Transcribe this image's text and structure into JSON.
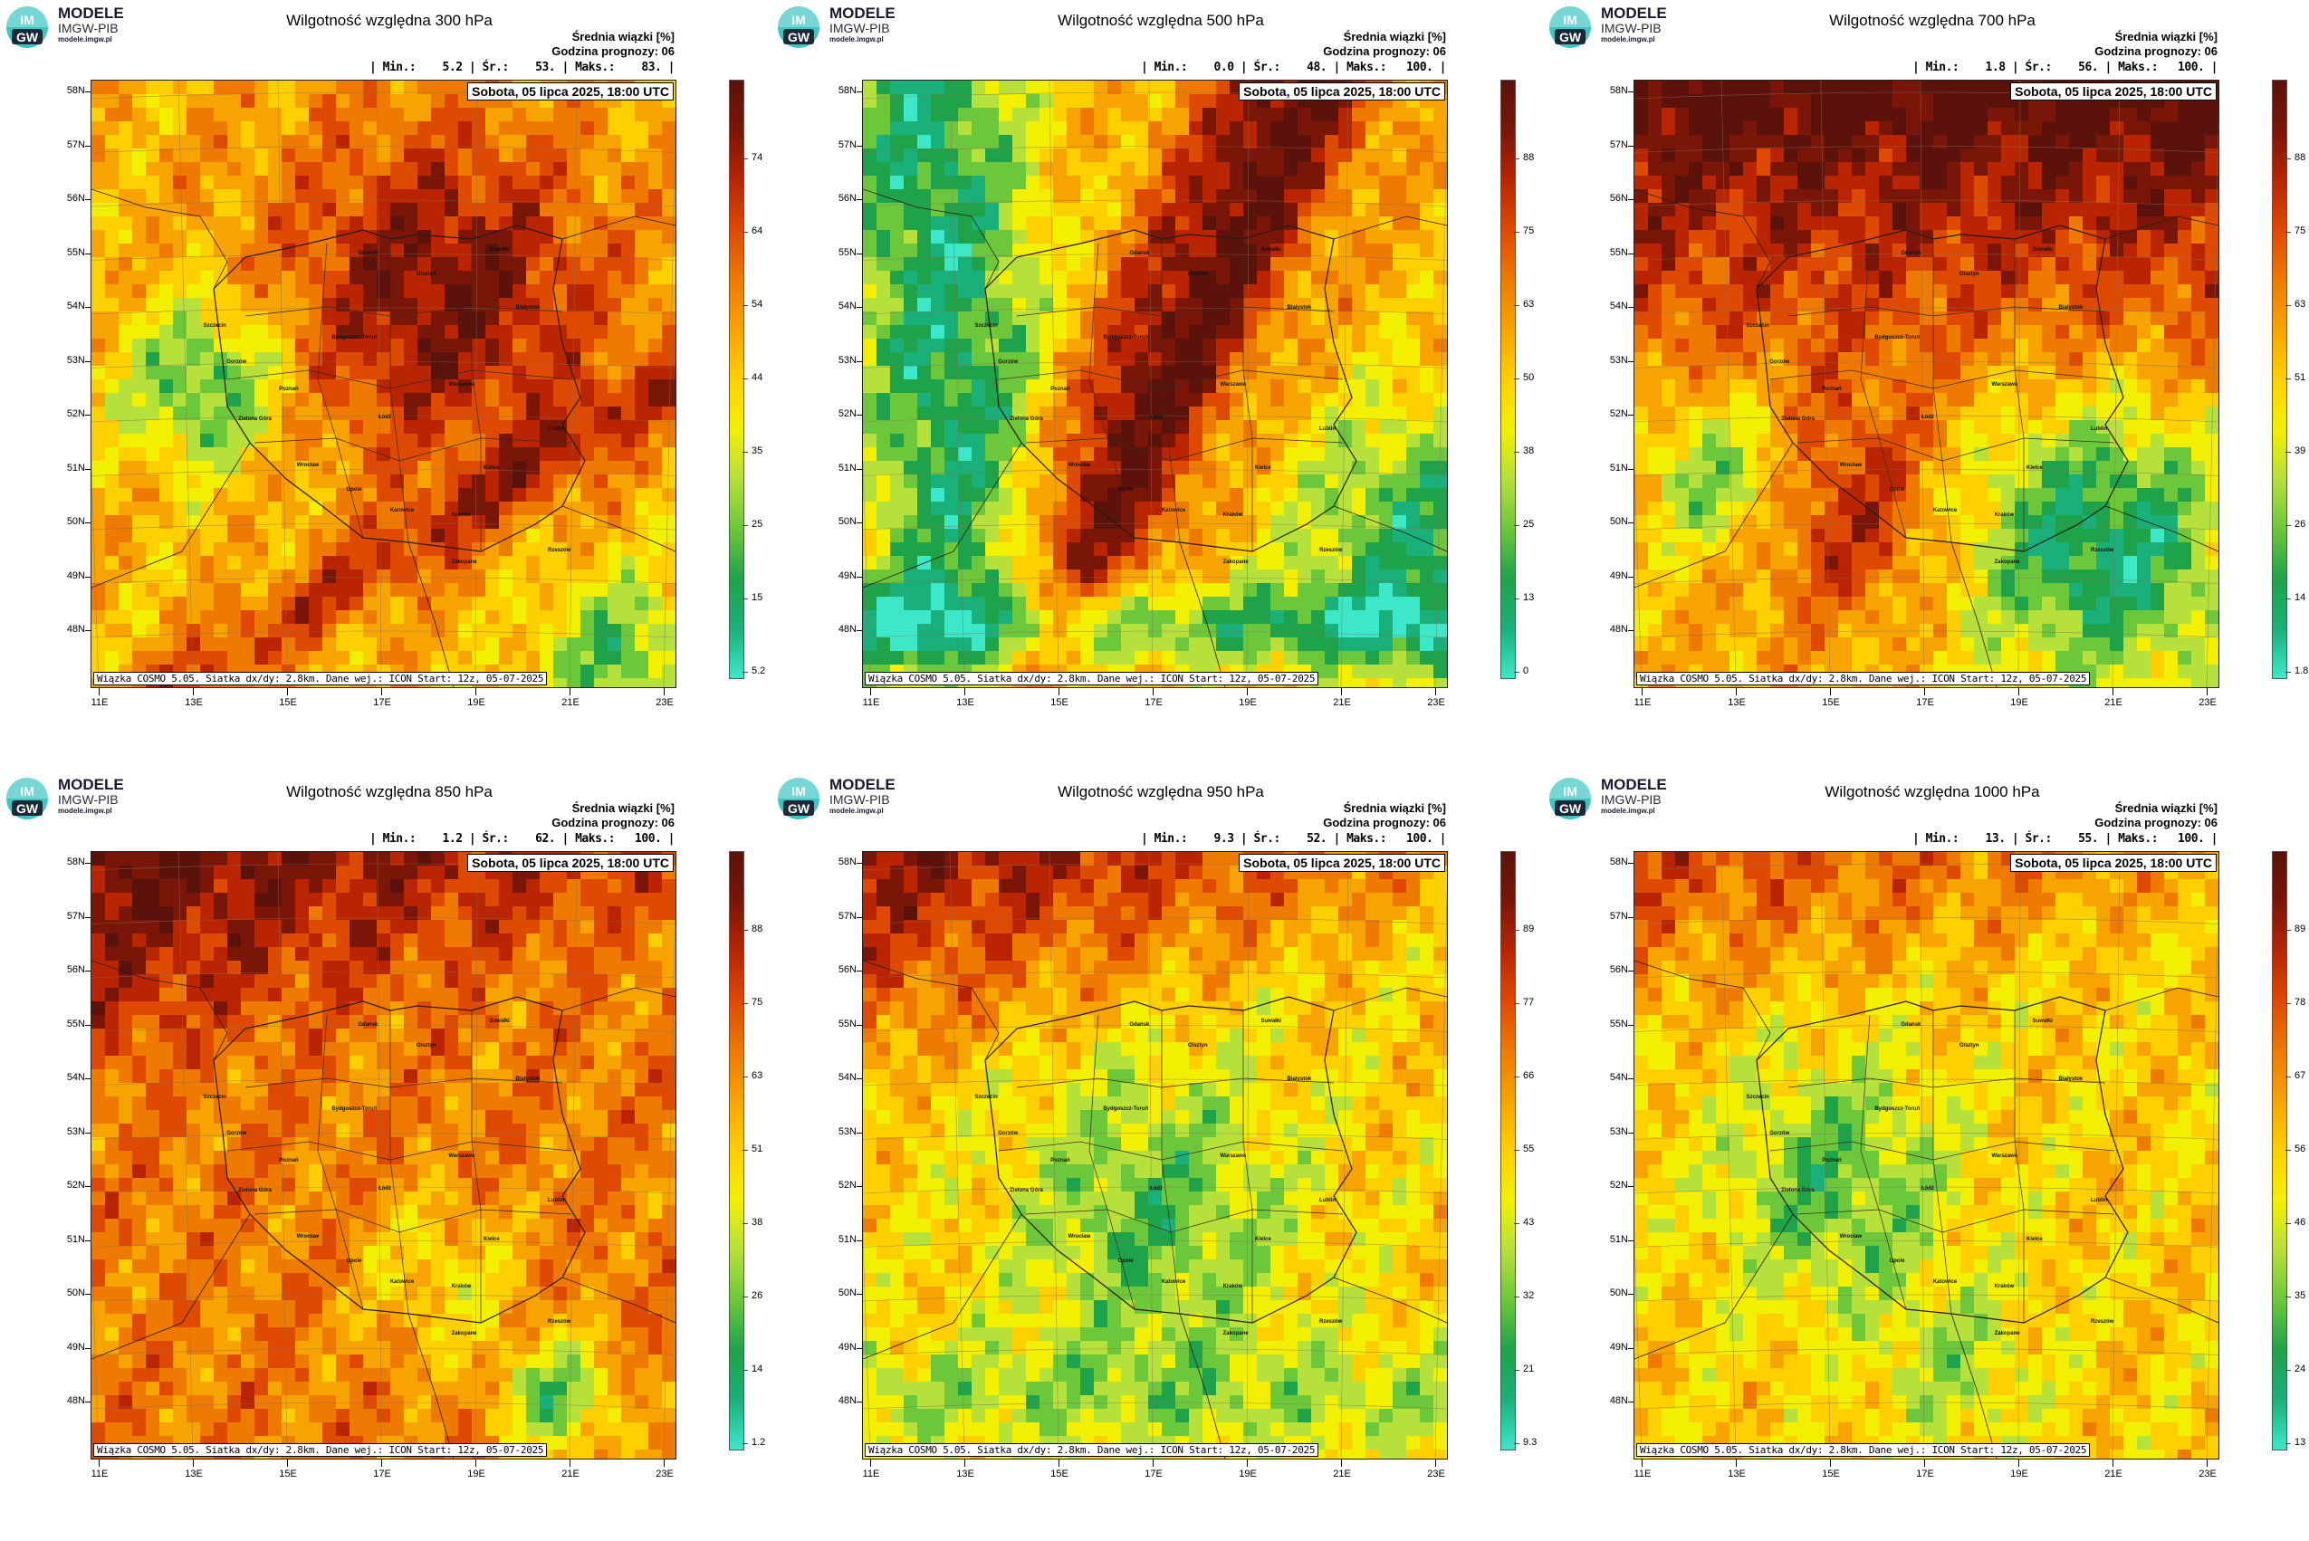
{
  "logo": {
    "title": "MODELE",
    "subtitle": "IMGW-PIB",
    "url": "modele.imgw.pl",
    "mark_top": "IM",
    "mark_bottom": "GW"
  },
  "common": {
    "legend_title": "Średnia wiązki [%]",
    "forecast_hour": "Godzina prognozy: 06",
    "date": "Sobota, 05 lipca 2025, 18:00 UTC",
    "footer": "Wiązka COSMO 5.05. Siatka dx/dy: 2.8km. Dane wej.: ICON Start: 12z, 05-07-2025",
    "lat_labels": [
      "58N",
      "57N",
      "56N",
      "55N",
      "54N",
      "53N",
      "52N",
      "51N",
      "50N",
      "49N",
      "48N"
    ],
    "lon_labels": [
      "11E",
      "13E",
      "15E",
      "17E",
      "19E",
      "21E",
      "23E"
    ],
    "cities": [
      "Gdańsk",
      "Suwałki",
      "Olsztyn",
      "Szczecin",
      "Bydgoszcz-Toruń",
      "Białystok",
      "Gorzów",
      "Poznań",
      "Warszawa",
      "Zielona Góra",
      "Łódź",
      "Lublin",
      "Wrocław",
      "Opole",
      "Kielce",
      "Katowice",
      "Kraków",
      "Rzeszów",
      "Zakopane"
    ]
  },
  "panels": [
    {
      "title": "Wilgotność względna 300 hPa",
      "stats": "| Min.:    5.2 | Śr.:    53. | Maks.:    83. |",
      "min": 5.2,
      "mean": 53,
      "max": 83,
      "scale_ticks": [
        "74",
        "64",
        "54",
        "44",
        "35",
        "25",
        "15",
        "5.2"
      ]
    },
    {
      "title": "Wilgotność względna 500 hPa",
      "stats": "| Min.:    0.0 | Śr.:    48. | Maks.:   100. |",
      "min": 0.0,
      "mean": 48,
      "max": 100,
      "scale_ticks": [
        "88",
        "75",
        "63",
        "50",
        "38",
        "25",
        "13",
        "0"
      ]
    },
    {
      "title": "Wilgotność względna 700 hPa",
      "stats": "| Min.:    1.8 | Śr.:    56. | Maks.:   100. |",
      "min": 1.8,
      "mean": 56,
      "max": 100,
      "scale_ticks": [
        "88",
        "75",
        "63",
        "51",
        "39",
        "26",
        "14",
        "1.8"
      ]
    },
    {
      "title": "Wilgotność względna 850 hPa",
      "stats": "| Min.:    1.2 | Śr.:    62. | Maks.:   100. |",
      "min": 1.2,
      "mean": 62,
      "max": 100,
      "scale_ticks": [
        "88",
        "75",
        "63",
        "51",
        "38",
        "26",
        "14",
        "1.2"
      ]
    },
    {
      "title": "Wilgotność względna 950 hPa",
      "stats": "| Min.:    9.3 | Śr.:    52. | Maks.:   100. |",
      "min": 9.3,
      "mean": 52,
      "max": 100,
      "scale_ticks": [
        "89",
        "77",
        "66",
        "55",
        "43",
        "32",
        "21",
        "9.3"
      ]
    },
    {
      "title": "Wilgotność względna 1000 hPa",
      "stats": "| Min.:    13. | Śr.:    55. | Maks.:   100. |",
      "min": 13,
      "mean": 55,
      "max": 100,
      "scale_ticks": [
        "89",
        "78",
        "67",
        "56",
        "46",
        "35",
        "24",
        "13"
      ]
    }
  ],
  "colors": {
    "scale": [
      "#3de8c8",
      "#19b07a",
      "#1fa34a",
      "#6cc83a",
      "#b6e03a",
      "#f2f000",
      "#ffd000",
      "#f7a400",
      "#ef7a00",
      "#de4a00",
      "#b82500",
      "#7a1608",
      "#5a120a"
    ]
  }
}
